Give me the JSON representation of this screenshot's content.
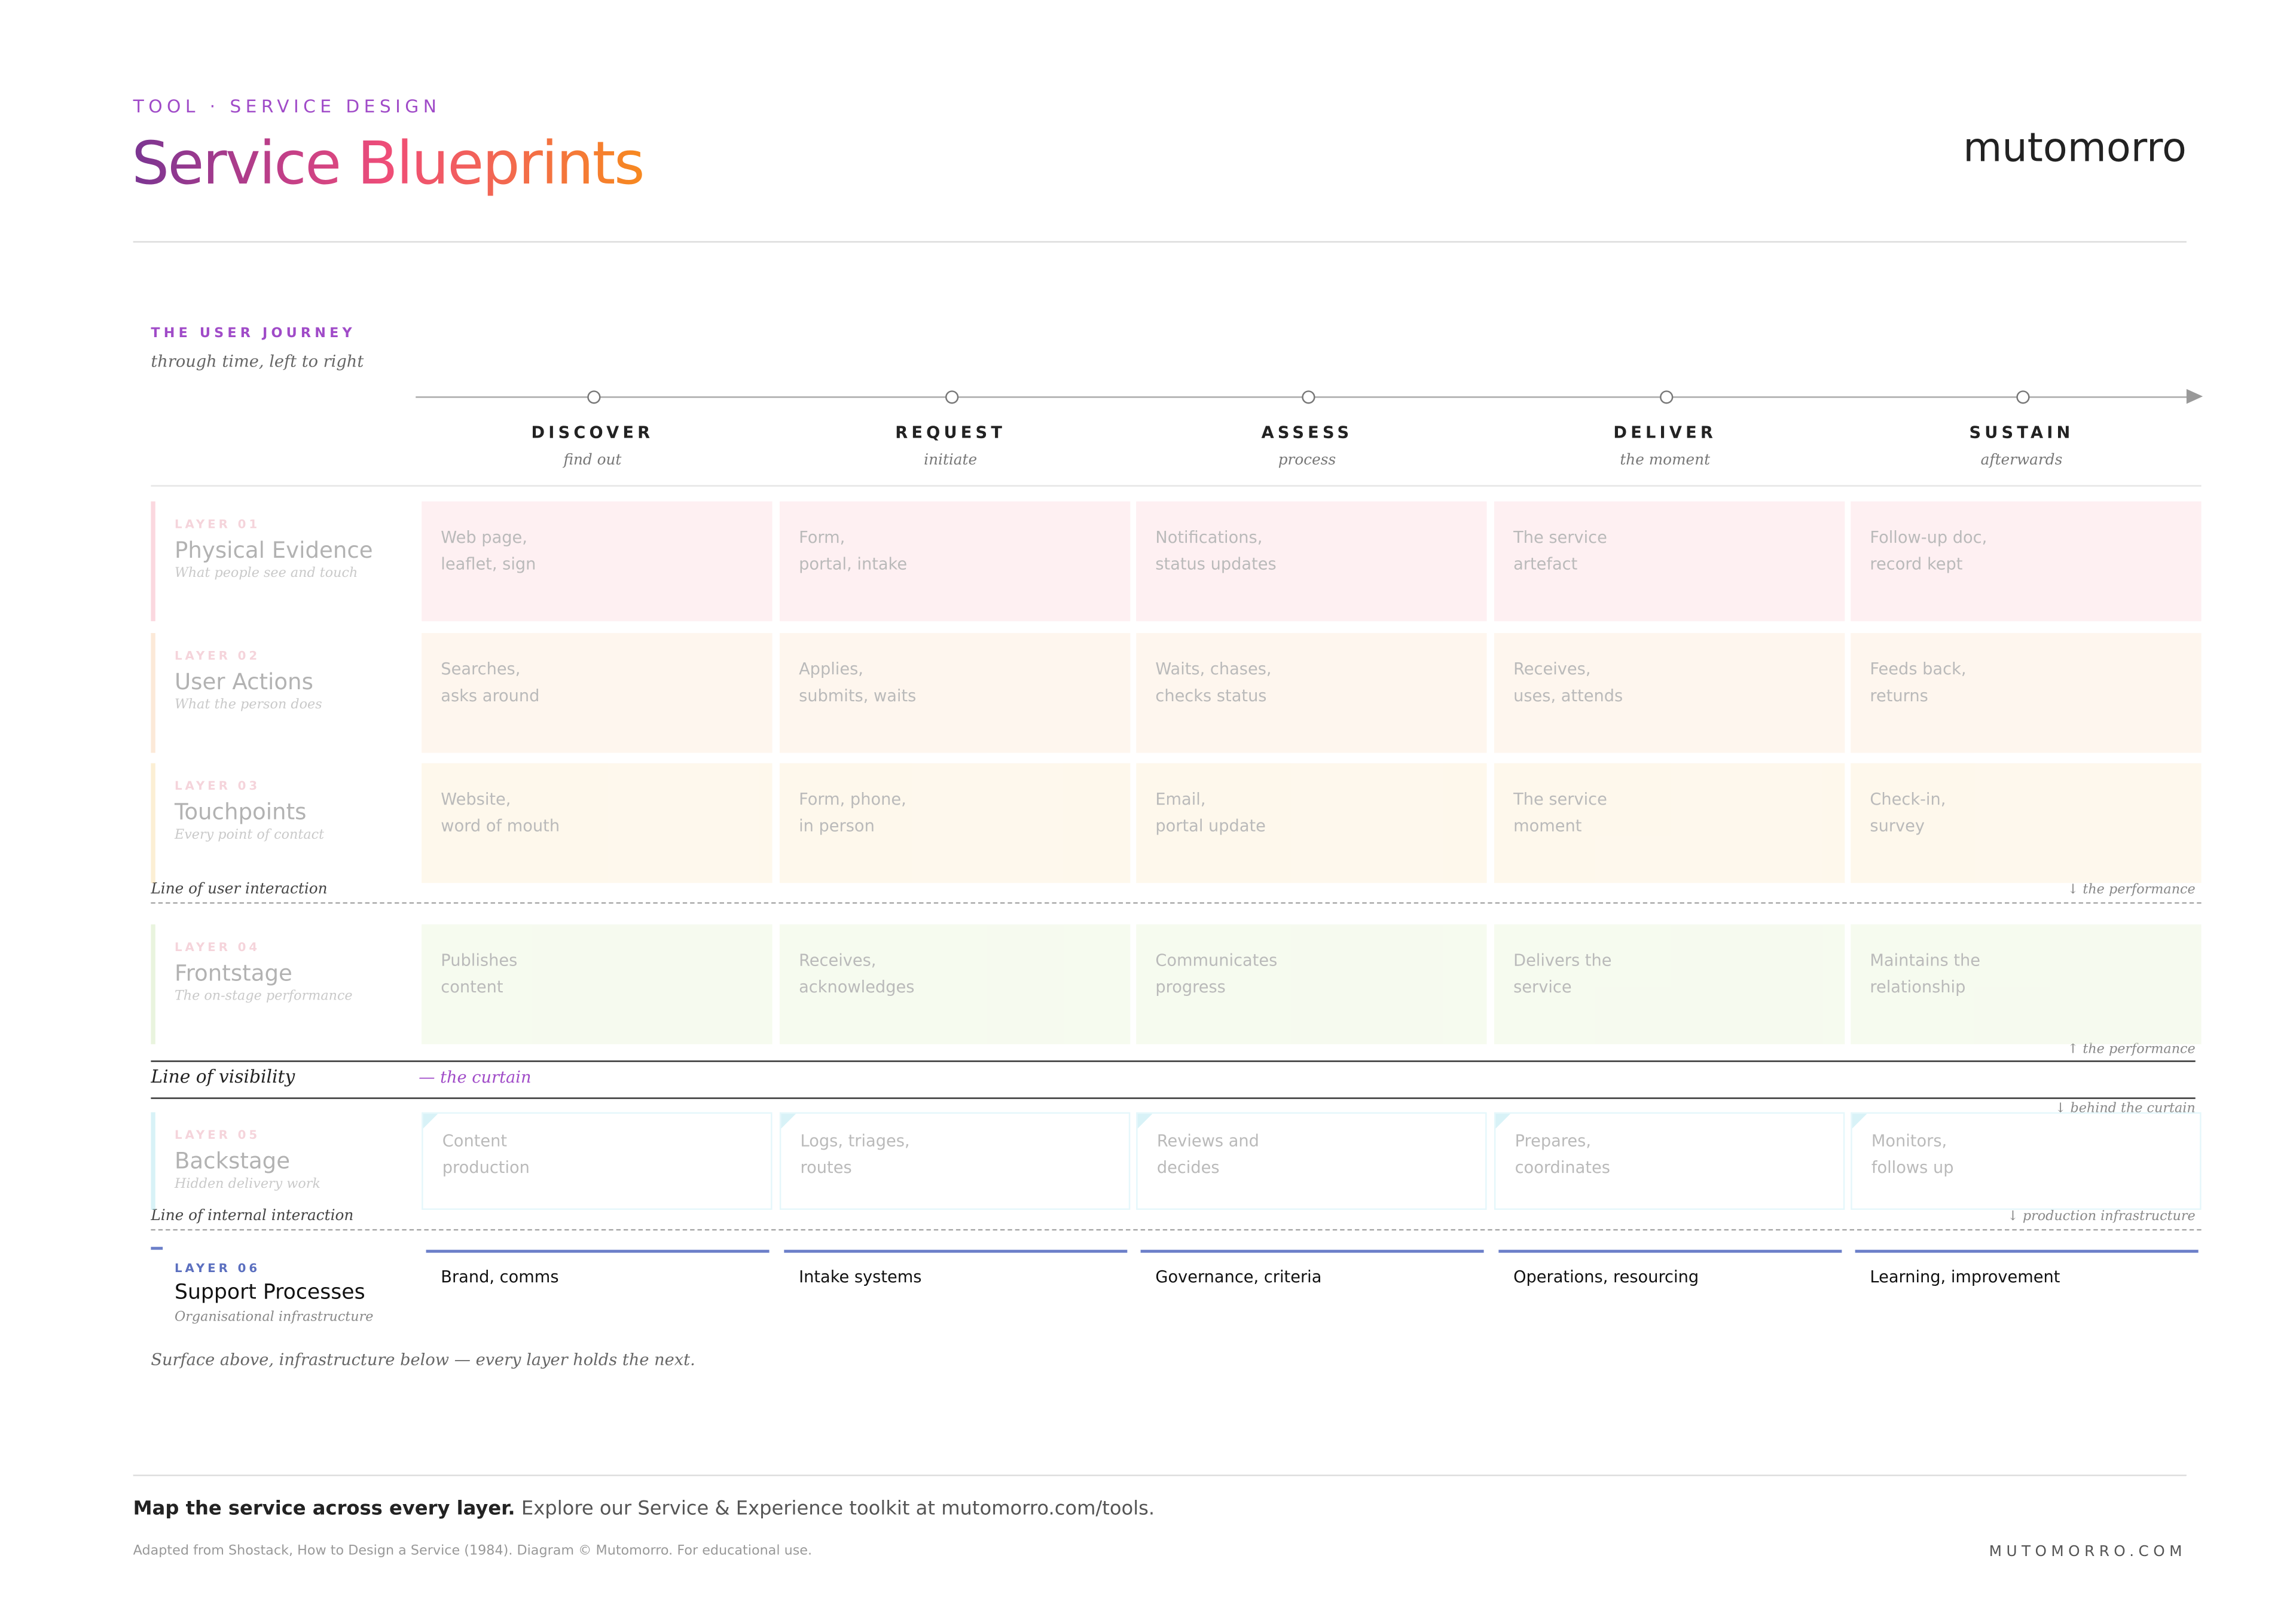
{
  "header": {
    "eyebrow": "TOOL · SERVICE DESIGN",
    "title": [
      "Service",
      "Blueprints"
    ],
    "brand": "mutomorro"
  },
  "journey": {
    "label": "THE USER JOURNEY",
    "sub": "through time, left to right",
    "stages": [
      {
        "name": "DISCOVER",
        "sub": "find out"
      },
      {
        "name": "REQUEST",
        "sub": "initiate"
      },
      {
        "name": "ASSESS",
        "sub": "process"
      },
      {
        "name": "DELIVER",
        "sub": "the moment"
      },
      {
        "name": "SUSTAIN",
        "sub": "afterwards"
      }
    ]
  },
  "layers": [
    {
      "num": "LAYER 01",
      "name": "Physical Evidence",
      "desc": "What people see and touch",
      "cells": [
        [
          "Web page,",
          "leaflet, sign"
        ],
        [
          "Form,",
          "portal, intake"
        ],
        [
          "Notifications,",
          "status updates"
        ],
        [
          "The service",
          "artefact"
        ],
        [
          "Follow-up doc,",
          "record kept"
        ]
      ]
    },
    {
      "num": "LAYER 02",
      "name": "User Actions",
      "desc": "What the person does",
      "cells": [
        [
          "Searches,",
          "asks around"
        ],
        [
          "Applies,",
          "submits, waits"
        ],
        [
          "Waits, chases,",
          "checks status"
        ],
        [
          "Receives,",
          "uses, attends"
        ],
        [
          "Feeds back,",
          "returns"
        ]
      ]
    },
    {
      "num": "LAYER 03",
      "name": "Touchpoints",
      "desc": "Every point of contact",
      "cells": [
        [
          "Website,",
          "word of mouth"
        ],
        [
          "Form, phone,",
          "in person"
        ],
        [
          "Email,",
          "portal update"
        ],
        [
          "The service",
          "moment"
        ],
        [
          "Check-in,",
          "survey"
        ]
      ]
    },
    {
      "num": "LAYER 04",
      "name": "Frontstage",
      "desc": "The on-stage performance",
      "cells": [
        [
          "Publishes",
          "content"
        ],
        [
          "Receives,",
          "acknowledges"
        ],
        [
          "Communicates",
          "progress"
        ],
        [
          "Delivers the",
          "service"
        ],
        [
          "Maintains the",
          "relationship"
        ]
      ]
    },
    {
      "num": "LAYER 05",
      "name": "Backstage",
      "desc": "Hidden delivery work",
      "cells": [
        [
          "Content",
          "production"
        ],
        [
          "Logs, triages,",
          "routes"
        ],
        [
          "Reviews and",
          "decides"
        ],
        [
          "Prepares,",
          "coordinates"
        ],
        [
          "Monitors,",
          "follows up"
        ]
      ]
    },
    {
      "num": "LAYER 06",
      "name": "Support Processes",
      "desc": "Organisational infrastructure",
      "cells": [
        [
          "Brand, comms"
        ],
        [
          "Intake systems"
        ],
        [
          "Governance, criteria"
        ],
        [
          "Operations, resourcing"
        ],
        [
          "Learning, improvement"
        ]
      ]
    }
  ],
  "lines": {
    "interaction": "Line of user interaction",
    "interaction_note": "↓ the performance",
    "frontstage_note": "↑ the performance",
    "visibility": "Line of visibility",
    "curtain": "— the curtain",
    "backstage_note": "↓ behind the curtain",
    "internal": "Line of internal interaction",
    "internal_note": "↓ production infrastructure"
  },
  "closing": "Surface above, infrastructure below — every layer holds the next.",
  "footer": {
    "lead": "Map the service across every layer.",
    "text": "Explore our Service & Experience toolkit at mutomorro.com/tools.",
    "credit": "Adapted from Shostack, How to Design a Service (1984). Diagram © Mutomorro. For educational use.",
    "url": "MUTOMORRO.COM"
  }
}
